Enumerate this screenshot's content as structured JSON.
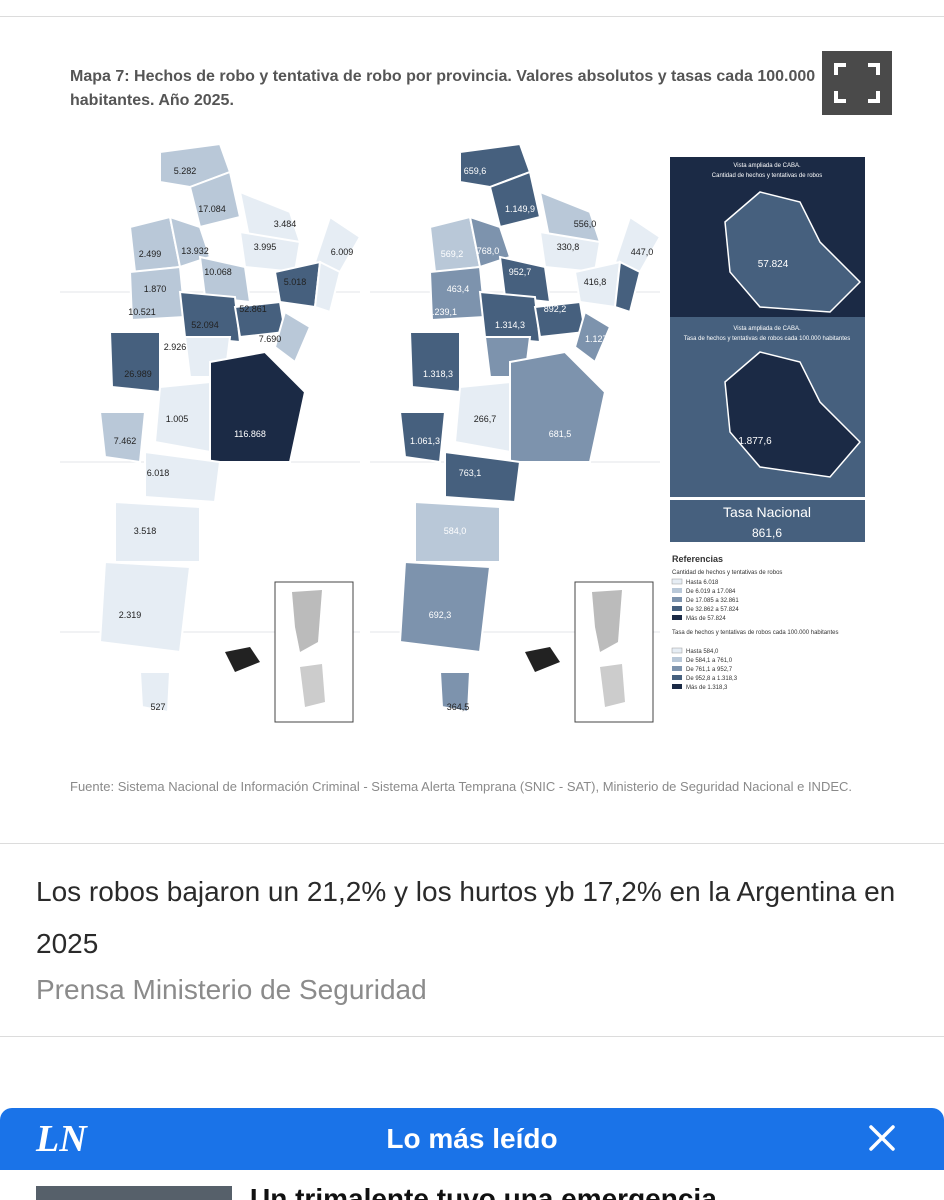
{
  "figure": {
    "title": "Mapa 7: Hechos de robo y tentativa de robo por provincia. Valores absolutos y tasas cada 100.000 habitantes. Año 2025.",
    "source": "Fuente: Sistema Nacional de Información Criminal - Sistema Alerta Temprana (SNIC - SAT), Ministerio de Seguridad Nacional e INDEC.",
    "expand_icon": "fullscreen-icon",
    "left_map_values": [
      "5.282",
      "17.084",
      "3.484",
      "2.499",
      "13.932",
      "3.995",
      "6.009",
      "10.068",
      "1.870",
      "5.018",
      "10.521",
      "52.094",
      "52.861",
      "7.690",
      "2.926",
      "26.989",
      "1.005",
      "116.868",
      "7.462",
      "6.018",
      "3.518",
      "2.319",
      "527"
    ],
    "right_map_values": [
      "659,6",
      "1.149,9",
      "556,0",
      "569,2",
      "768,0",
      "330,8",
      "447,0",
      "952,7",
      "416,8",
      "463,4",
      "1.239,1",
      "1.314,3",
      "892,2",
      "545,7",
      "1.318,3",
      "1.127,0",
      "266,7",
      "681,5",
      "1.061,3",
      "763,1",
      "584,0",
      "692,3",
      "364,5"
    ],
    "caba_abs_title": "Vista ampliada de CABA.",
    "caba_abs_subtitle": "Cantidad de hechos y tentativas de robos",
    "caba_abs_value": "57.824",
    "caba_rate_title": "Vista ampliada de CABA.",
    "caba_rate_subtitle": "Tasa de hechos y tentativas de robos cada 100.000 habitantes",
    "caba_rate_value": "1.877,6",
    "tasa_label": "Tasa Nacional",
    "tasa_value": "861,6",
    "legend": {
      "title": "Referencias",
      "abs_heading": "Cantidad de hechos y tentativas de robos",
      "abs_items": [
        "Hasta 6.018",
        "De 6.019 a 17.084",
        "De 17.085 a 32.861",
        "De 32.862 a 57.824",
        "Más de 57.824"
      ],
      "rate_heading": "Tasa de hechos y tentativas de robos cada 100.000 habitantes",
      "rate_items": [
        "Hasta 584,0",
        "De 584,1 a 761,0",
        "De 761,1 a 952,7",
        "De 952,8 a 1.318,3",
        "Más de 1.318,3"
      ],
      "colors": [
        "#e6edf4",
        "#b9c8d8",
        "#7d93ad",
        "#46607e",
        "#1b2a45"
      ]
    }
  },
  "caption": "Los robos bajaron un 21,2% y los hurtos yb 17,2% en la Argentina en 2025",
  "credit": "Prensa Ministerio de Seguridad",
  "most_read": {
    "logo": "LN",
    "title": "Lo más leído",
    "close_icon": "close-icon",
    "first_item_text": "Un trimalente tuvo una emergencia"
  }
}
